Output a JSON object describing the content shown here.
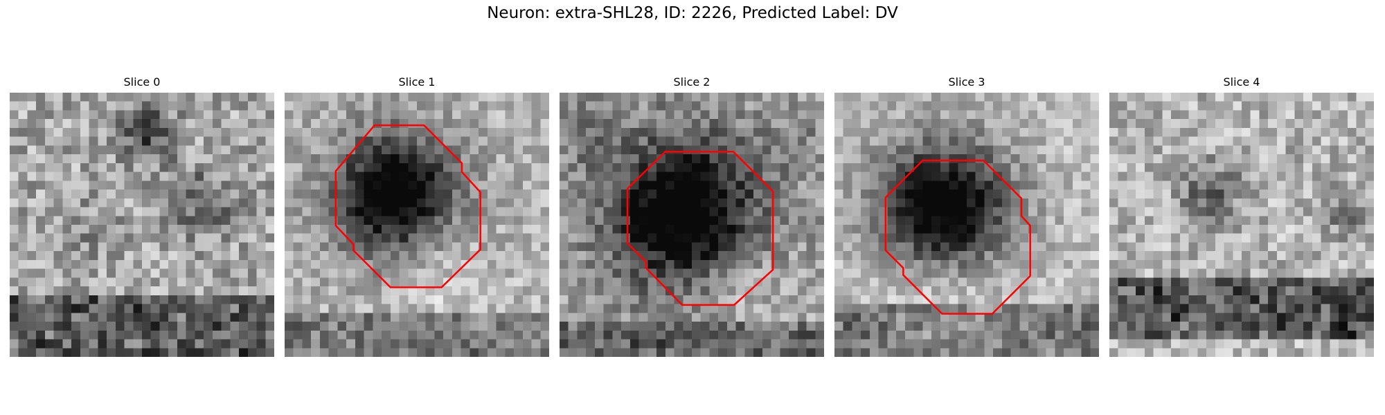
{
  "figure": {
    "title": "Neuron: extra-SHL28, ID: 2226, Predicted Label: DV"
  },
  "panels": [
    {
      "title": "Slice 0",
      "has_contour": false,
      "contour_color": "#ff0000"
    },
    {
      "title": "Slice 1",
      "has_contour": true,
      "contour_color": "#ff0000"
    },
    {
      "title": "Slice 2",
      "has_contour": true,
      "contour_color": "#ff0000"
    },
    {
      "title": "Slice 3",
      "has_contour": true,
      "contour_color": "#ff0000"
    },
    {
      "title": "Slice 4",
      "has_contour": false,
      "contour_color": "#ff0000"
    }
  ]
}
